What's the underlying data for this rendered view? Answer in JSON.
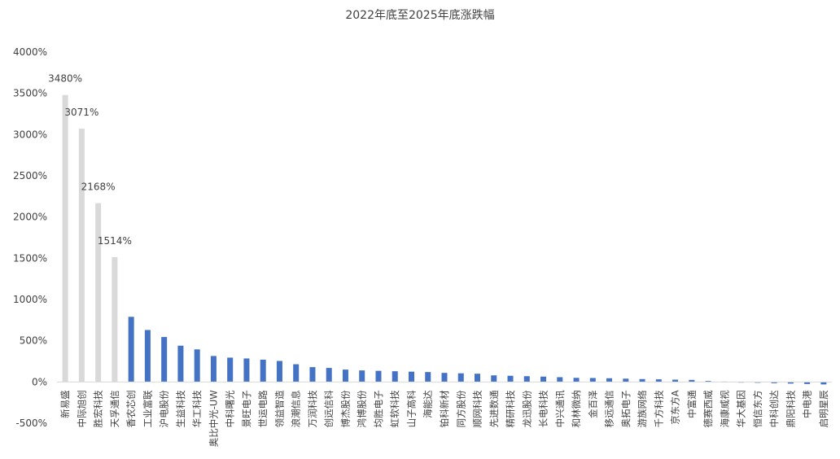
{
  "chart_data": {
    "type": "bar",
    "title": "2022年底至2025年底涨跌幅",
    "xlabel": "",
    "ylabel": "",
    "ylim": [
      -500,
      4000
    ],
    "yticks": [
      -500,
      0,
      500,
      1000,
      1500,
      2000,
      2500,
      3000,
      3500,
      4000
    ],
    "ytick_suffix": "%",
    "grid": false,
    "legend": "none",
    "colors": {
      "highlight": "#d9d9d9",
      "default": "#4472c4",
      "axis": "#d9d9d9",
      "text": "#404040"
    },
    "categories": [
      "新易盛",
      "中际旭创",
      "胜宏科技",
      "天孚通信",
      "香农芯创",
      "工业富联",
      "沪电股份",
      "生益科技",
      "华工科技",
      "奥比中光-UW",
      "中科曙光",
      "景旺电子",
      "世运电路",
      "领益智造",
      "浪潮信息",
      "万润科技",
      "创远信科",
      "博杰股份",
      "鸿博股份",
      "均胜电子",
      "虹软科技",
      "山子高科",
      "海能达",
      "铂科新材",
      "同方股份",
      "顺网科技",
      "先进数通",
      "精研科技",
      "龙迅股份",
      "长电科技",
      "中兴通讯",
      "和林微纳",
      "金百泽",
      "移远通信",
      "奥拓电子",
      "游族网络",
      "千方科技",
      "京东方A",
      "中富通",
      "德赛西威",
      "海康威视",
      "华大基因",
      "恒信东方",
      "中科创达",
      "鼎阳科技",
      "中电港",
      "启明星辰"
    ],
    "values": [
      3480,
      3071,
      2168,
      1514,
      790,
      630,
      545,
      440,
      395,
      315,
      295,
      285,
      270,
      255,
      215,
      180,
      170,
      150,
      140,
      135,
      130,
      125,
      120,
      110,
      105,
      100,
      80,
      75,
      70,
      65,
      58,
      50,
      48,
      45,
      40,
      35,
      32,
      28,
      25,
      12,
      4,
      -5,
      -10,
      -15,
      -20,
      -25,
      -30
    ],
    "highlight_count": 4,
    "data_labels": [
      {
        "index": 0,
        "text": "3480%"
      },
      {
        "index": 1,
        "text": "3071%"
      },
      {
        "index": 2,
        "text": "2168%"
      },
      {
        "index": 3,
        "text": "1514%"
      }
    ]
  }
}
